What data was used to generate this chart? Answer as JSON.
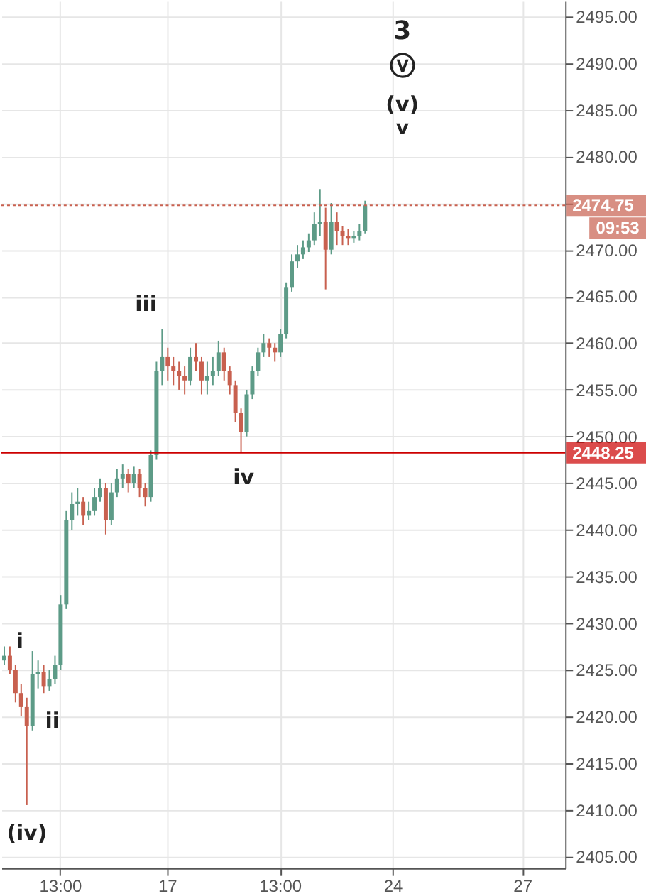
{
  "chart_data": {
    "type": "candlestick",
    "categories": [
      null,
      null,
      null,
      null,
      null,
      null,
      null,
      null,
      null,
      null,
      "13:00",
      null,
      null,
      null,
      null,
      null,
      null,
      null,
      null,
      null,
      null,
      null,
      null,
      null,
      null,
      null,
      null,
      null,
      null,
      "17",
      null,
      null,
      null,
      null,
      null,
      null,
      null,
      null,
      null,
      null,
      null,
      null,
      null,
      null,
      null,
      null,
      null,
      null,
      null,
      "13:00",
      null,
      null,
      null,
      null,
      null,
      null,
      null,
      null,
      null,
      null,
      null,
      null,
      null,
      null,
      null,
      null,
      null,
      null,
      null,
      "24",
      null,
      null,
      null,
      null,
      null,
      null,
      null,
      null,
      null,
      null,
      null,
      null,
      null,
      null,
      null,
      null,
      null,
      null,
      null,
      null,
      null,
      null,
      "27",
      null,
      null,
      null,
      null,
      null,
      null,
      null
    ],
    "ohlc": [
      [
        2426,
        2427.5,
        2425.5,
        2426.5
      ],
      [
        2426.5,
        2427.5,
        2424.5,
        2425
      ],
      [
        2425,
        2425.5,
        2421.5,
        2422.5
      ],
      [
        2422.5,
        2423.5,
        2420,
        2421
      ],
      [
        2421,
        2422,
        2410.5,
        2419
      ],
      [
        2419,
        2427,
        2418.5,
        2424.5
      ],
      [
        2424.5,
        2426,
        2423,
        2424.75
      ],
      [
        2424.75,
        2425.5,
        2422.5,
        2423.25
      ],
      [
        2423.25,
        2425,
        2422.75,
        2424
      ],
      [
        2424,
        2426.5,
        2423.5,
        2425.5
      ],
      [
        2425.5,
        2433,
        2425,
        2432
      ],
      [
        2432,
        2442,
        2431.5,
        2441
      ],
      [
        2441,
        2444,
        2440,
        2442.75
      ],
      [
        2442.75,
        2444.5,
        2441.5,
        2443
      ],
      [
        2443,
        2443.5,
        2440.5,
        2441.5
      ],
      [
        2441.5,
        2443,
        2441,
        2442
      ],
      [
        2442,
        2444.5,
        2441.5,
        2443.5
      ],
      [
        2443.5,
        2445.5,
        2443,
        2444.5
      ],
      [
        2444.5,
        2445,
        2439.5,
        2441
      ],
      [
        2441,
        2445,
        2440.5,
        2444
      ],
      [
        2444,
        2446.5,
        2443.5,
        2445.5
      ],
      [
        2445.5,
        2447,
        2444.5,
        2446
      ],
      [
        2446,
        2446.5,
        2444,
        2445
      ],
      [
        2445,
        2446.75,
        2444.5,
        2446
      ],
      [
        2446,
        2446.5,
        2443.5,
        2444.5
      ],
      [
        2444.5,
        2445,
        2442.5,
        2443.5
      ],
      [
        2443.5,
        2448.5,
        2443,
        2448
      ],
      [
        2448,
        2458,
        2447.5,
        2457
      ],
      [
        2457,
        2461.5,
        2455.5,
        2458.5
      ],
      [
        2458.5,
        2459.5,
        2456,
        2457.5
      ],
      [
        2457.5,
        2458.5,
        2455.5,
        2457
      ],
      [
        2457,
        2458,
        2455,
        2456.5
      ],
      [
        2456.5,
        2457.5,
        2454.5,
        2456
      ],
      [
        2456,
        2459.5,
        2455.5,
        2458.5
      ],
      [
        2458.5,
        2460,
        2457,
        2458
      ],
      [
        2458,
        2458.5,
        2454.5,
        2456
      ],
      [
        2456,
        2458,
        2454.5,
        2456.5
      ],
      [
        2456.5,
        2458.5,
        2455.5,
        2457
      ],
      [
        2457,
        2460.25,
        2456.5,
        2459
      ],
      [
        2459,
        2459.5,
        2456,
        2457
      ],
      [
        2457,
        2457.5,
        2454.5,
        2455.5
      ],
      [
        2455.5,
        2456,
        2451.5,
        2452.5
      ],
      [
        2452.5,
        2453,
        2448.25,
        2450.5
      ],
      [
        2450.5,
        2455,
        2450,
        2454.5
      ],
      [
        2454.5,
        2457.5,
        2454,
        2457
      ],
      [
        2457,
        2459.5,
        2456.5,
        2459
      ],
      [
        2459,
        2461,
        2458.5,
        2460
      ],
      [
        2460,
        2460.5,
        2458.5,
        2459.5
      ],
      [
        2459.5,
        2460,
        2458,
        2459
      ],
      [
        2459,
        2461.5,
        2458.5,
        2461
      ],
      [
        2461,
        2466.5,
        2460.5,
        2466
      ],
      [
        2466,
        2469.5,
        2465.5,
        2468.75
      ],
      [
        2468.75,
        2470.5,
        2468,
        2469.5
      ],
      [
        2469.5,
        2471,
        2469,
        2470.25
      ],
      [
        2470.25,
        2471.75,
        2469.75,
        2471
      ],
      [
        2471,
        2474,
        2470.5,
        2472.75
      ],
      [
        2472.75,
        2476.5,
        2471.5,
        2473
      ],
      [
        2473,
        2474.5,
        2465.75,
        2470
      ],
      [
        2470,
        2475,
        2469.5,
        2473
      ],
      [
        2473,
        2474,
        2470.5,
        2472
      ],
      [
        2472,
        2472.5,
        2470.5,
        2471.5
      ],
      [
        2471.5,
        2472.25,
        2470.5,
        2471.25
      ],
      [
        2471.25,
        2472,
        2470.75,
        2471.5
      ],
      [
        2471.5,
        2472.75,
        2471,
        2472
      ],
      [
        2472,
        2475.25,
        2471.75,
        2474.75
      ],
      null,
      null,
      null,
      null,
      null,
      null,
      null,
      null,
      null,
      null,
      null,
      null,
      null,
      null,
      null,
      null,
      null,
      null,
      null,
      null,
      null,
      null,
      null,
      null,
      null,
      null,
      null,
      null,
      null,
      null,
      null,
      null,
      null,
      null,
      null
    ],
    "colors": [
      "#5d9b87",
      "#c8604f",
      "#c8604f",
      "#c8604f",
      "#c8604f",
      "#5d9b87",
      "#5d9b87",
      "#c8604f",
      "#5d9b87",
      "#5d9b87",
      "#5d9b87",
      "#5d9b87",
      "#5d9b87",
      "#5d9b87",
      "#c8604f",
      "#5d9b87",
      "#5d9b87",
      "#5d9b87",
      "#c8604f",
      "#5d9b87",
      "#5d9b87",
      "#5d9b87",
      "#c8604f",
      "#5d9b87",
      "#c8604f",
      "#c8604f",
      "#5d9b87",
      "#5d9b87",
      "#5d9b87",
      "#c8604f",
      "#c8604f",
      "#c8604f",
      "#c8604f",
      "#5d9b87",
      "#c8604f",
      "#c8604f",
      "#5d9b87",
      "#5d9b87",
      "#5d9b87",
      "#c8604f",
      "#c8604f",
      "#c8604f",
      "#c8604f",
      "#5d9b87",
      "#5d9b87",
      "#5d9b87",
      "#5d9b87",
      "#c8604f",
      "#c8604f",
      "#5d9b87",
      "#5d9b87",
      "#5d9b87",
      "#5d9b87",
      "#5d9b87",
      "#5d9b87",
      "#5d9b87",
      "#5d9b87",
      "#c8604f",
      "#5d9b87",
      "#c8604f",
      "#c8604f",
      "#c8604f",
      "#5d9b87",
      "#5d9b87",
      "#5d9b87",
      null,
      null,
      null,
      null,
      null,
      null,
      null,
      null,
      null,
      null,
      null,
      null,
      null,
      null,
      null,
      null,
      null,
      null,
      null,
      null,
      null,
      null,
      null,
      null,
      null,
      null,
      null,
      null,
      null,
      null,
      null,
      null,
      null,
      null,
      null
    ],
    "ylim": [
      2403.75,
      2496.65
    ],
    "yticks": [
      {
        "value": 2405,
        "label": "2405.00"
      },
      {
        "value": 2410,
        "label": "2410.00"
      },
      {
        "value": 2415,
        "label": "2415.00"
      },
      {
        "value": 2420,
        "label": "2420.00"
      },
      {
        "value": 2425,
        "label": "2425.00"
      },
      {
        "value": 2430,
        "label": "2430.00"
      },
      {
        "value": 2435,
        "label": "2435.00"
      },
      {
        "value": 2440,
        "label": "2440.00"
      },
      {
        "value": 2445,
        "label": "2445.00"
      },
      {
        "value": 2450,
        "label": "2450.00"
      },
      {
        "value": 2455,
        "label": "2455.00"
      },
      {
        "value": 2460,
        "label": "2460.00"
      },
      {
        "value": 2465,
        "label": "2465.00"
      },
      {
        "value": 2470,
        "label": "2470.00"
      },
      {
        "value": 2475,
        "label": null
      },
      {
        "value": 2480,
        "label": "2480.00"
      },
      {
        "value": 2485,
        "label": "2485.00"
      },
      {
        "value": 2490,
        "label": "2490.00"
      },
      {
        "value": 2495,
        "label": "2495.00"
      }
    ],
    "grid": true,
    "ref_lines": [
      {
        "axis": "y",
        "value": 2474.75,
        "label": "2474.75",
        "color": "#c8604f",
        "line_style": "dotted"
      },
      {
        "axis": "y",
        "value": 2448.25,
        "label": "2448.25",
        "color": "#cc0000",
        "line_style": "solid"
      }
    ],
    "annotations": [
      "(iv)",
      "i",
      "ii",
      "iii",
      "iv",
      "3",
      "ⓥ",
      "(v)",
      "v",
      "09:53"
    ]
  }
}
